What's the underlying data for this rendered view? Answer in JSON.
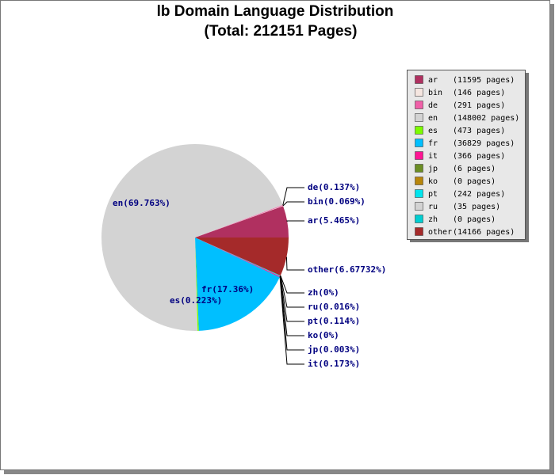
{
  "chart_data": {
    "type": "pie",
    "title": "lb Domain Language Distribution",
    "subtitle": "(Total: 212151 Pages)",
    "categories": [
      "ar",
      "bin",
      "de",
      "en",
      "es",
      "fr",
      "it",
      "jp",
      "ko",
      "pt",
      "ru",
      "zh",
      "other"
    ],
    "values": [
      5.465,
      0.069,
      0.137,
      69.763,
      0.223,
      17.36,
      0.173,
      0.003,
      0,
      0.114,
      0.016,
      0,
      6.67732
    ],
    "value_labels": [
      "ar(5.465%)",
      "bin(0.069%)",
      "de(0.137%)",
      "en(69.763%)",
      "es(0.223%)",
      "fr(17.36%)",
      "it(0.173%)",
      "jp(0.003%)",
      "ko(0%)",
      "pt(0.114%)",
      "ru(0.016%)",
      "zh(0%)",
      "other(6.67732%)"
    ],
    "legend_details": [
      "(11595 pages)",
      "(146 pages)",
      "(291 pages)",
      "(148002 pages)",
      "(473 pages)",
      "(36829 pages)",
      "(366 pages)",
      "(6 pages)",
      "(0 pages)",
      "(242 pages)",
      "(35 pages)",
      "(0 pages)",
      "(14166 pages)"
    ],
    "colors": [
      "#b03060",
      "#f5e6e0",
      "#f060a8",
      "#d3d3d3",
      "#7cfc00",
      "#00bfff",
      "#ff1493",
      "#6b8e23",
      "#b8860b",
      "#00e5ee",
      "#d3d3d3",
      "#00ced1",
      "#a52a2a"
    ],
    "legend": "upper right"
  }
}
